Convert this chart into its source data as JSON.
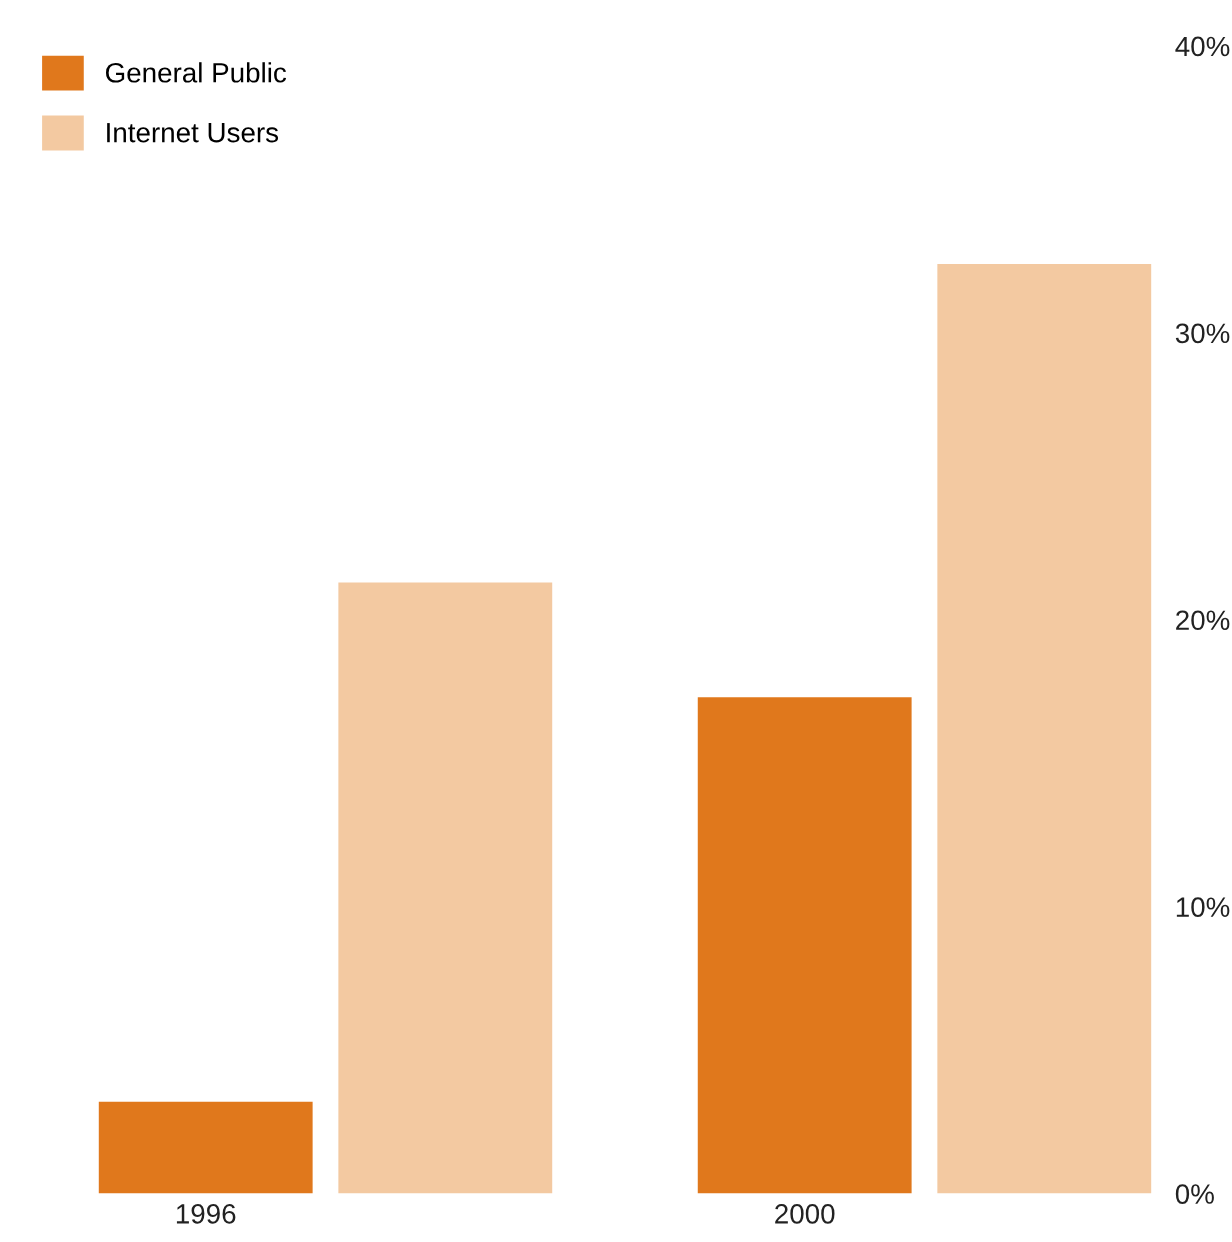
{
  "chart_data": {
    "type": "bar",
    "categories": [
      "1996",
      "2000"
    ],
    "series": [
      {
        "name": "General Public",
        "color": "#e0781c",
        "values": [
          3.2,
          17.3
        ]
      },
      {
        "name": "Internet Users",
        "color": "#f3c9a1",
        "values": [
          21.3,
          32.4
        ]
      }
    ],
    "ylim": [
      0,
      40
    ],
    "yticks": [
      {
        "value": 0,
        "label": "0%"
      },
      {
        "value": 10,
        "label": "10%"
      },
      {
        "value": 20,
        "label": "20%"
      },
      {
        "value": 30,
        "label": "30%"
      },
      {
        "value": 40,
        "label": "40%"
      }
    ],
    "grid": false,
    "legend": "top left"
  }
}
